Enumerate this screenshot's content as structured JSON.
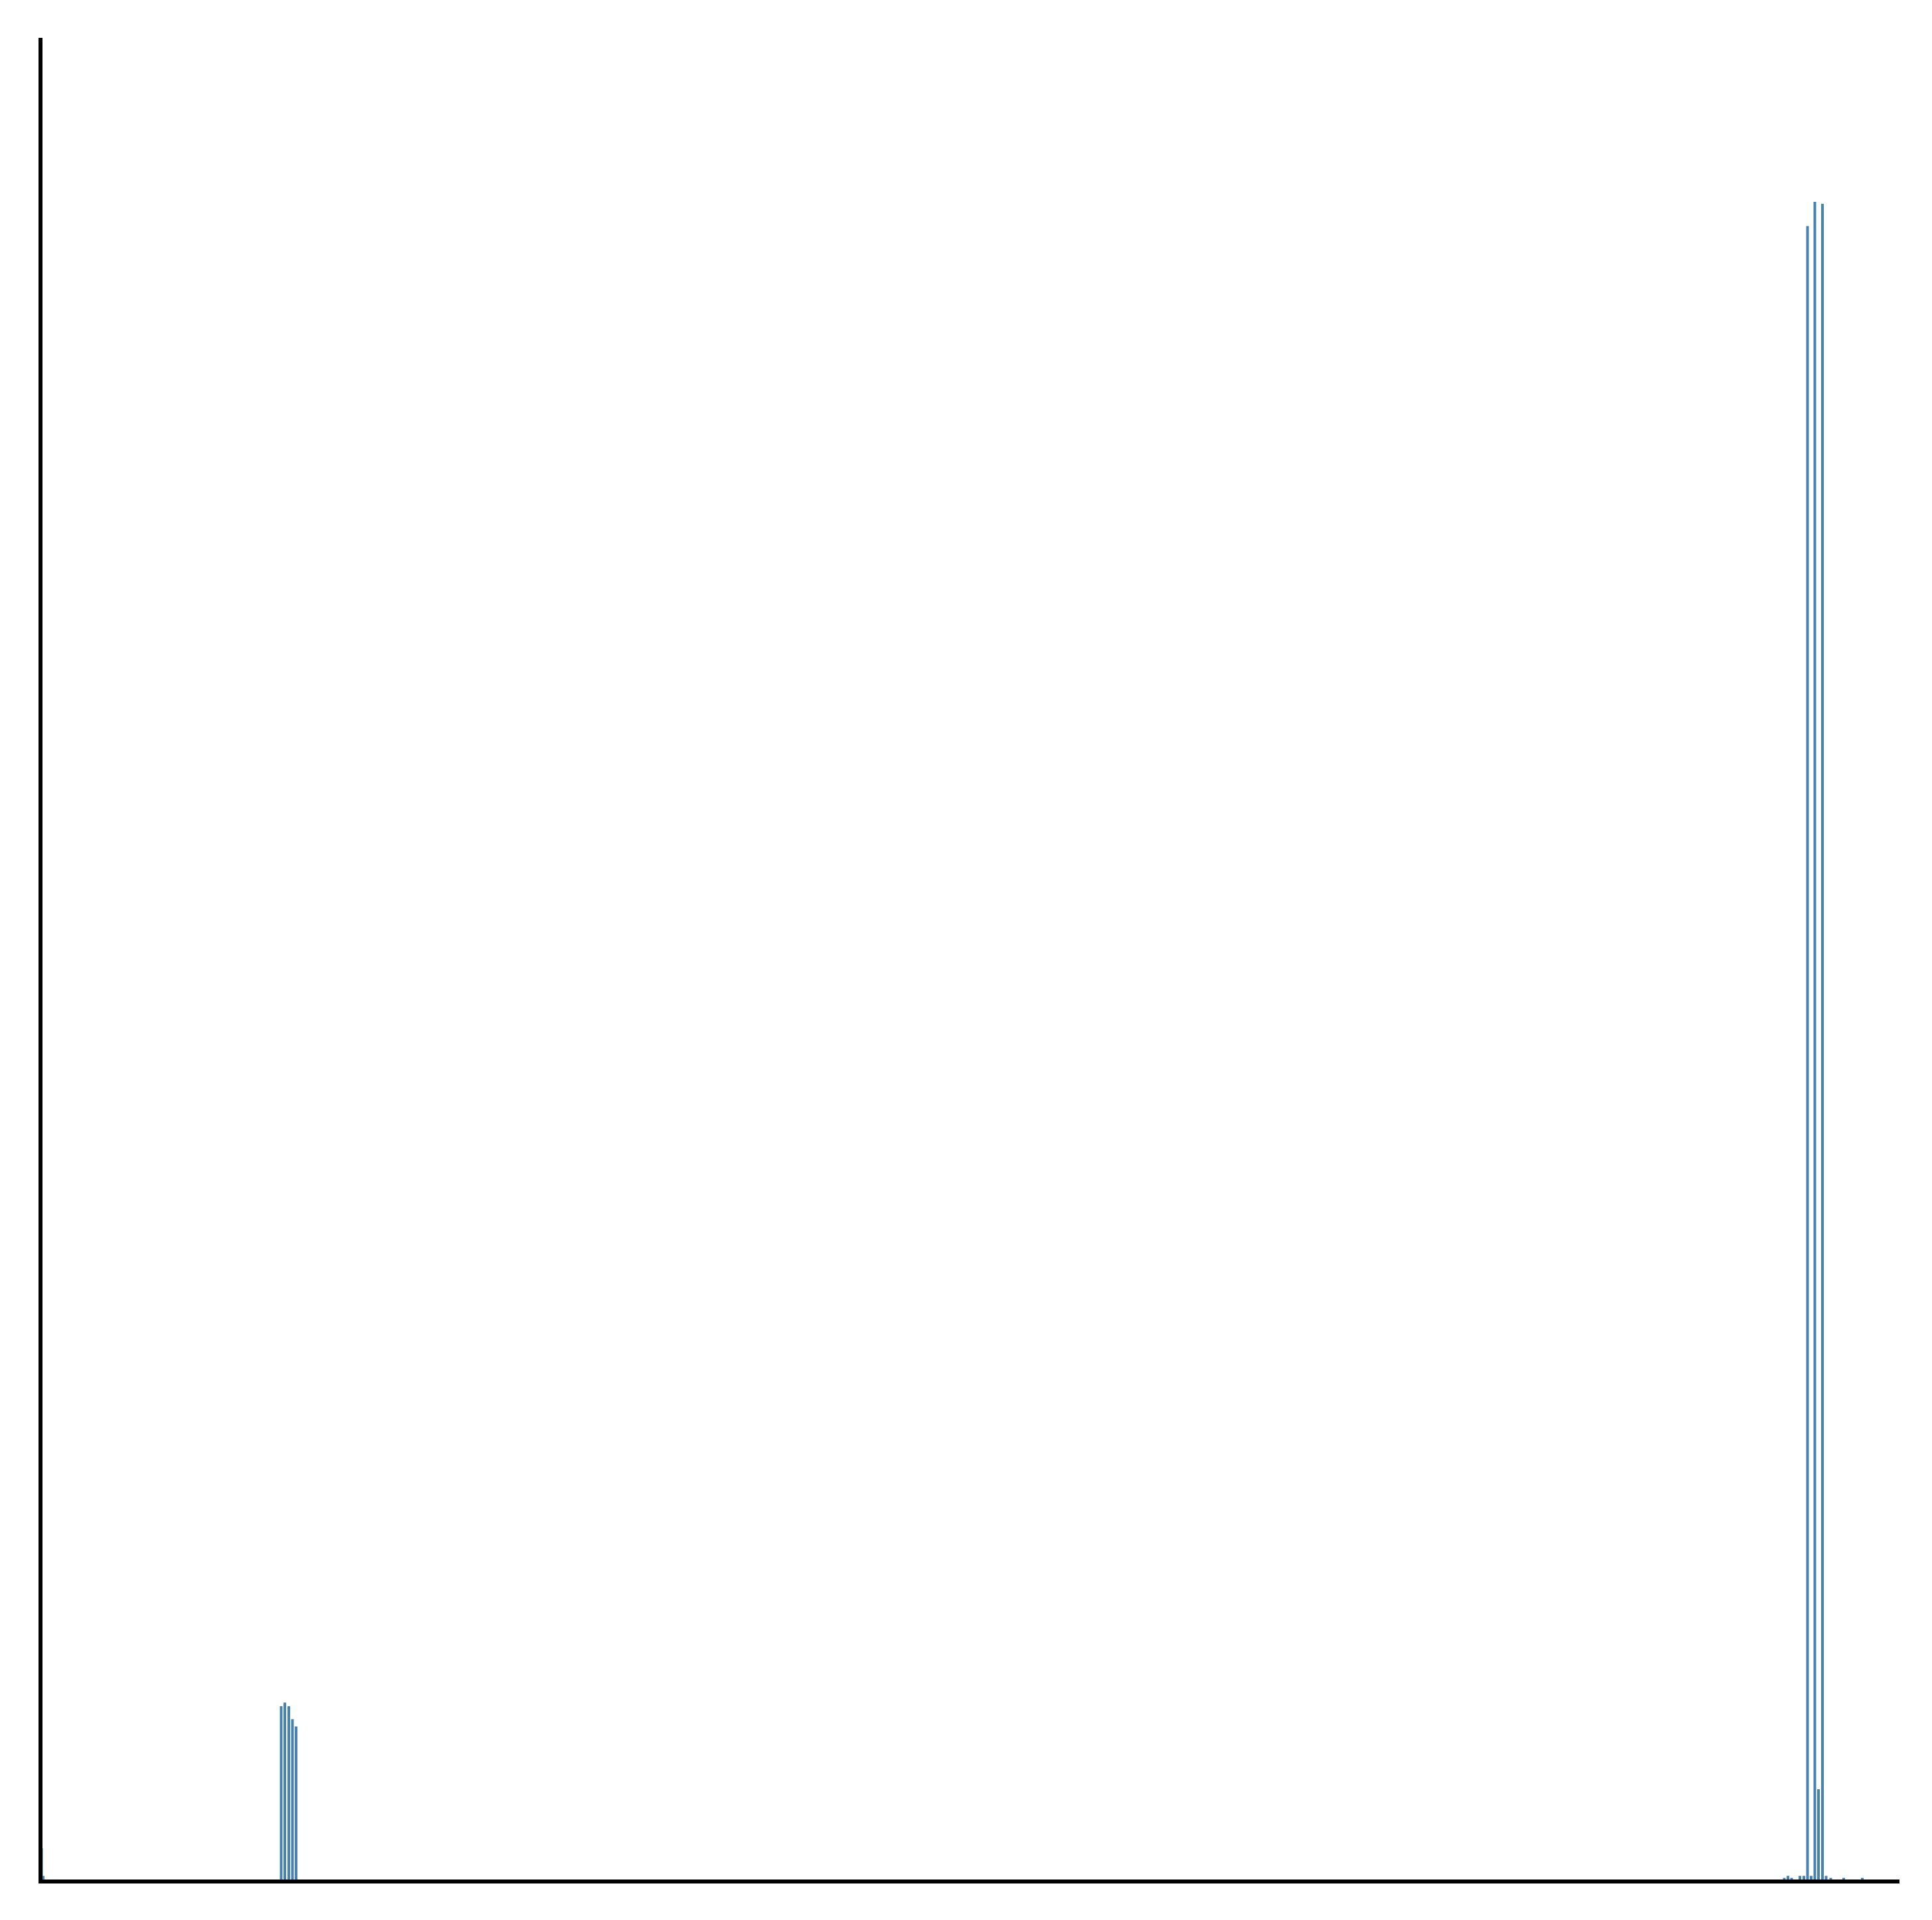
{
  "chart_data": {
    "type": "bar",
    "title": "",
    "xlabel": "",
    "ylabel": "",
    "xlim": [
      0,
      1000
    ],
    "ylim": [
      0,
      1000
    ],
    "grid": false,
    "legend": "none",
    "ticks_shown": false,
    "bar_color": "#4682b4",
    "axis_color": "#000000",
    "series": [
      {
        "values": [
          {
            "x": 0.5,
            "y": 18
          },
          {
            "x": 1.5,
            "y": 3
          },
          {
            "x": 117,
            "y": 1
          },
          {
            "x": 122,
            "y": 1
          },
          {
            "x": 126,
            "y": 1
          },
          {
            "x": 129.5,
            "y": 95
          },
          {
            "x": 131.5,
            "y": 97
          },
          {
            "x": 133.5,
            "y": 95
          },
          {
            "x": 135.5,
            "y": 88
          },
          {
            "x": 137.5,
            "y": 84
          },
          {
            "x": 139.5,
            "y": 1
          },
          {
            "x": 880,
            "y": 1
          },
          {
            "x": 905,
            "y": 1
          },
          {
            "x": 915,
            "y": 1
          },
          {
            "x": 920,
            "y": 1
          },
          {
            "x": 925,
            "y": 1
          },
          {
            "x": 930,
            "y": 1
          },
          {
            "x": 935,
            "y": 1
          },
          {
            "x": 938,
            "y": 2
          },
          {
            "x": 940,
            "y": 3
          },
          {
            "x": 942,
            "y": 2
          },
          {
            "x": 944,
            "y": 1
          },
          {
            "x": 946.5,
            "y": 3
          },
          {
            "x": 948.5,
            "y": 3
          },
          {
            "x": 950.5,
            "y": 898
          },
          {
            "x": 952.5,
            "y": 3
          },
          {
            "x": 954.5,
            "y": 911
          },
          {
            "x": 956.5,
            "y": 50
          },
          {
            "x": 958.5,
            "y": 910
          },
          {
            "x": 960.5,
            "y": 3
          },
          {
            "x": 963,
            "y": 2
          },
          {
            "x": 966,
            "y": 1
          },
          {
            "x": 970,
            "y": 2
          },
          {
            "x": 973,
            "y": 1
          },
          {
            "x": 976,
            "y": 1
          },
          {
            "x": 980,
            "y": 2
          },
          {
            "x": 985,
            "y": 1
          },
          {
            "x": 990,
            "y": 1
          },
          {
            "x": 995,
            "y": 1
          }
        ]
      }
    ]
  }
}
